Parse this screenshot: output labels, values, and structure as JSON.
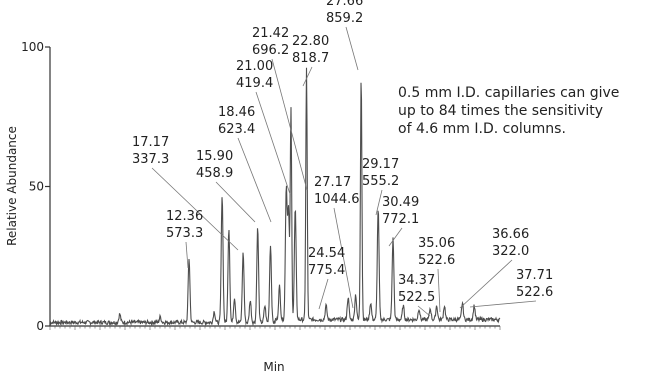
{
  "chart_data": {
    "type": "line",
    "xlabel": "Min",
    "ylabel": "Relative Abundance",
    "ylim": [
      0,
      100
    ],
    "yticks": [
      "0",
      "50",
      "100"
    ],
    "grid": false,
    "legend": "none",
    "annotation": "0.5 mm I.D. capillaries can give up to 84 times the sensitivity of 4.6 mm I.D. columns.",
    "annotation_lines": [
      "0.5 mm I.D. capillaries can give",
      "up to 84 times the sensitivity",
      "of 4.6 mm I.D. columns."
    ],
    "line_color": "#4d4d4d",
    "peaks": [
      {
        "rt": "12.36",
        "mz": "573.3",
        "height": 23
      },
      {
        "rt": "17.17",
        "mz": "337.3",
        "height": 25
      },
      {
        "rt": "15.90",
        "mz": "458.9",
        "height": 34
      },
      {
        "rt": "18.46",
        "mz": "623.4",
        "height": 34
      },
      {
        "rt": "21.00",
        "mz": "419.4",
        "height": 47
      },
      {
        "rt": "21.42",
        "mz": "696.2",
        "height": 75
      },
      {
        "rt": "22.80",
        "mz": "818.7",
        "height": 90
      },
      {
        "rt": "27.17",
        "mz": "1044.6",
        "height": 9
      },
      {
        "rt": "24.54",
        "mz": "775.4",
        "height": 5
      },
      {
        "rt": "27.66",
        "mz": "859.2",
        "height": 88
      },
      {
        "rt": "29.17",
        "mz": "555.2",
        "height": 40
      },
      {
        "rt": "30.49",
        "mz": "772.1",
        "height": 29
      },
      {
        "rt": "34.37",
        "mz": "522.5",
        "height": 5
      },
      {
        "rt": "35.06",
        "mz": "522.6",
        "height": 5
      },
      {
        "rt": "36.66",
        "mz": "322.0",
        "height": 6
      },
      {
        "rt": "37.71",
        "mz": "522.6",
        "height": 5
      }
    ]
  }
}
